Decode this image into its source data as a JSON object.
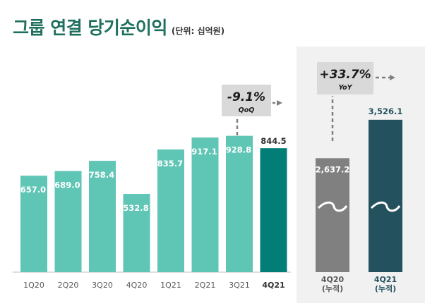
{
  "title": "그룹 연결 당기순이익",
  "unit": "(단위: 십억원)",
  "qoq": {
    "value": "-9.1%",
    "label": "QoQ"
  },
  "yoy": {
    "value": "+33.7%",
    "label": "YoY"
  },
  "colors": {
    "title": "#1f6f5f",
    "bar_quarter": "#5fc5b5",
    "bar_quarter_current": "#037e77",
    "bar_cumulative_prev": "#808080",
    "bar_cumulative_current": "#23525e",
    "callout_bg": "#d9d9d9",
    "right_panel_bg": "#f1f1f1"
  },
  "chart_data": [
    {
      "type": "bar",
      "categories": [
        "1Q20",
        "2Q20",
        "3Q20",
        "4Q20",
        "1Q21",
        "2Q21",
        "3Q21",
        "4Q21"
      ],
      "values": [
        657.0,
        689.0,
        758.4,
        532.8,
        835.7,
        917.1,
        928.8,
        844.5
      ],
      "labels": [
        "657.0",
        "689.0",
        "758.4",
        "532.8",
        "835.7",
        "917.1",
        "928.8",
        "844.5"
      ],
      "highlight_index": 7
    },
    {
      "type": "bar",
      "categories": [
        "4Q20\n(누적)",
        "4Q21\n(누적)"
      ],
      "category_lines": [
        [
          "4Q20",
          "(누적)"
        ],
        [
          "4Q21",
          "(누적)"
        ]
      ],
      "values": [
        2637.2,
        3526.1
      ],
      "labels": [
        "2,637.2",
        "3,526.1"
      ],
      "axis_break": true
    }
  ]
}
